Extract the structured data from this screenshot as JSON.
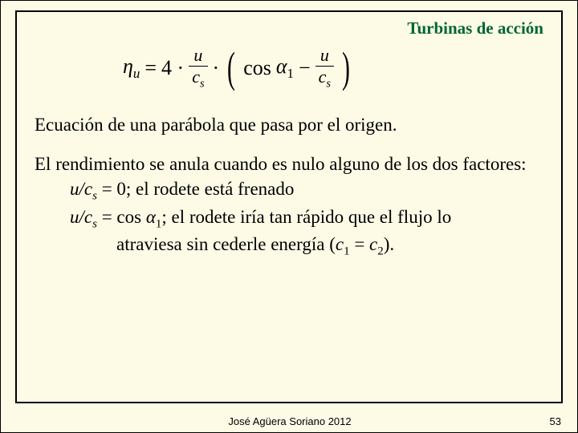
{
  "header": {
    "title": "Turbinas de acción"
  },
  "equation": {
    "lhs_eta": "η",
    "lhs_sub": "u",
    "eq": "=",
    "coef": "4 ·",
    "frac1_num": "u",
    "frac1_den_c": "c",
    "frac1_den_s": "s",
    "dot": "·",
    "cos": "cos",
    "alpha": "α",
    "alpha_sub": "1",
    "minus": "−",
    "frac2_num": "u",
    "frac2_den_c": "c",
    "frac2_den_s": "s"
  },
  "text": {
    "p1": "Ecuación de una parábola que pasa por el origen.",
    "p2": "El rendimiento se anula cuando es nulo alguno de los dos factores:",
    "l1a": "u/c",
    "l1a_sub": "s",
    "l1b": " = 0; el rodete está frenado",
    "l2a": "u/c",
    "l2a_sub": "s",
    "l2b": " = cos ",
    "l2_alpha": "α",
    "l2_alpha_sub": "1",
    "l2c": "; el rodete iría tan rápido que el flujo lo",
    "l3": "atraviesa sin cederle energía (",
    "l3_c1": "c",
    "l3_c1_sub": "1",
    "l3_eq": " = ",
    "l3_c2": "c",
    "l3_c2_sub": "2",
    "l3_end": ")."
  },
  "footer": {
    "author": "José Agüera Soriano 2012",
    "page": "53"
  },
  "colors": {
    "bg": "#fdfae6",
    "header": "#006633"
  }
}
